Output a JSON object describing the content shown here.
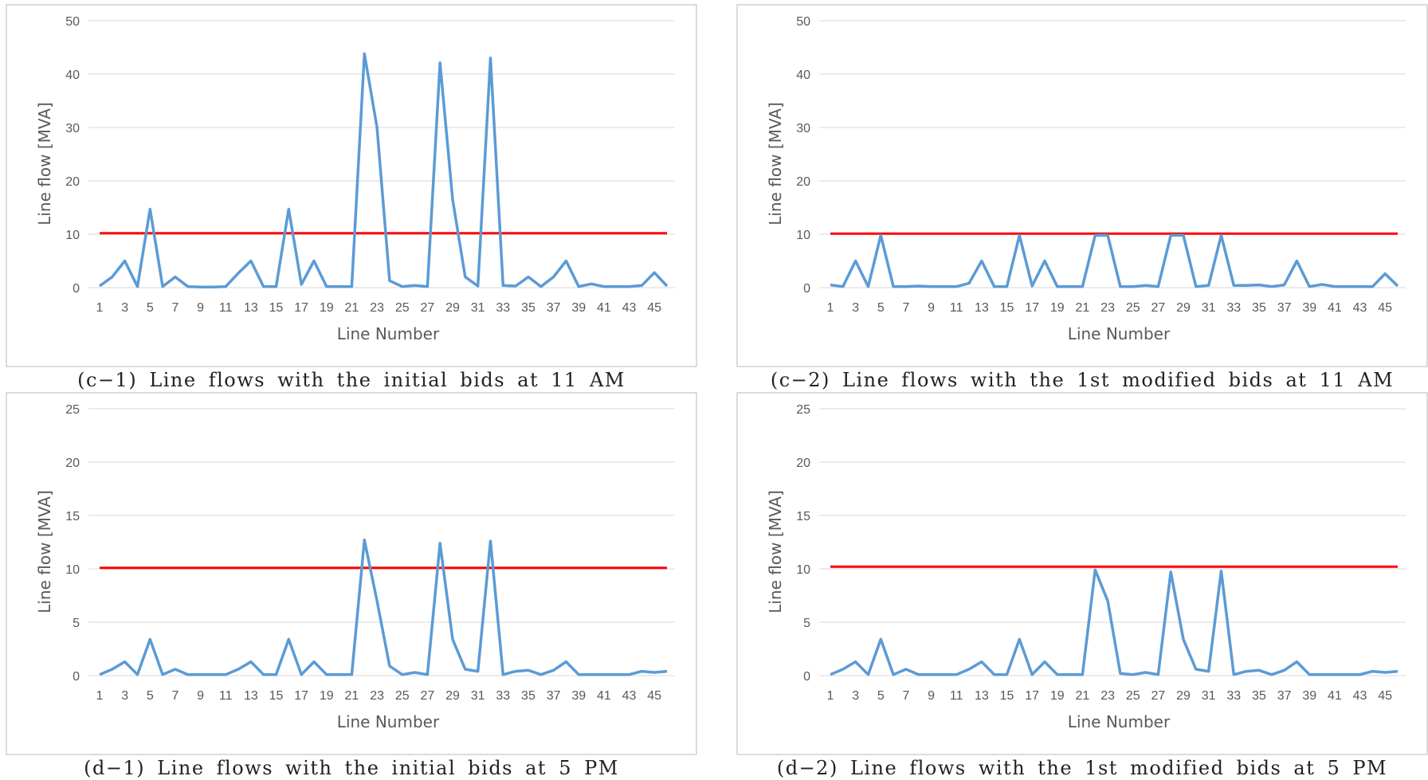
{
  "chart_data": [
    {
      "type": "line",
      "caption": "(c−1) Line flows with the initial bids at 11 AM",
      "xlabel": "Line Number",
      "ylabel": "Line flow [MVA]",
      "ylim": [
        0,
        50
      ],
      "yticks": [
        "0",
        "10",
        "20",
        "30",
        "40",
        "50"
      ],
      "xticks": [
        "1",
        "3",
        "5",
        "7",
        "9",
        "11",
        "13",
        "15",
        "17",
        "19",
        "21",
        "23",
        "25",
        "27",
        "29",
        "31",
        "33",
        "35",
        "37",
        "39",
        "41",
        "43",
        "45"
      ],
      "grid": true,
      "x": [
        1,
        2,
        3,
        4,
        5,
        6,
        7,
        8,
        9,
        10,
        11,
        12,
        13,
        14,
        15,
        16,
        17,
        18,
        19,
        20,
        21,
        22,
        23,
        24,
        25,
        26,
        27,
        28,
        29,
        30,
        31,
        32,
        33,
        34,
        35,
        36,
        37,
        38,
        39,
        40,
        41,
        42,
        43,
        44,
        45,
        46
      ],
      "series": [
        {
          "values": [
            0.3,
            2,
            5,
            0.2,
            14.7,
            0.2,
            2,
            0.2,
            0.1,
            0.1,
            0.2,
            2.7,
            5,
            0.2,
            0.2,
            14.7,
            0.6,
            5,
            0.2,
            0.2,
            0.2,
            43.8,
            30,
            1.3,
            0.2,
            0.4,
            0.2,
            42.1,
            16.5,
            2,
            0.3,
            43,
            0.4,
            0.3,
            2,
            0.2,
            2,
            5,
            0.2,
            0.7,
            0.2,
            0.2,
            0.2,
            0.4,
            2.8,
            0.3
          ]
        },
        {
          "values": [
            10.2,
            10.2,
            10.2,
            10.2,
            10.2,
            10.2,
            10.2,
            10.2,
            10.2,
            10.2,
            10.2,
            10.2,
            10.2,
            10.2,
            10.2,
            10.2,
            10.2,
            10.2,
            10.2,
            10.2,
            10.2,
            10.2,
            10.2,
            10.2,
            10.2,
            10.2,
            10.2,
            10.2,
            10.2,
            10.2,
            10.2,
            10.2,
            10.2,
            10.2,
            10.2,
            10.2,
            10.2,
            10.2,
            10.2,
            10.2,
            10.2,
            10.2,
            10.2,
            10.2,
            10.2,
            10.2
          ]
        }
      ]
    },
    {
      "type": "line",
      "caption": "(c−2) Line flows with the 1st modified bids at 11 AM",
      "xlabel": "Line Number",
      "ylabel": "Line flow [MVA]",
      "ylim": [
        0,
        50
      ],
      "yticks": [
        "0",
        "10",
        "20",
        "30",
        "40",
        "50"
      ],
      "xticks": [
        "1",
        "3",
        "5",
        "7",
        "9",
        "11",
        "13",
        "15",
        "17",
        "19",
        "21",
        "23",
        "25",
        "27",
        "29",
        "31",
        "33",
        "35",
        "37",
        "39",
        "41",
        "43",
        "45"
      ],
      "grid": true,
      "x": [
        1,
        2,
        3,
        4,
        5,
        6,
        7,
        8,
        9,
        10,
        11,
        12,
        13,
        14,
        15,
        16,
        17,
        18,
        19,
        20,
        21,
        22,
        23,
        24,
        25,
        26,
        27,
        28,
        29,
        30,
        31,
        32,
        33,
        34,
        35,
        36,
        37,
        38,
        39,
        40,
        41,
        42,
        43,
        44,
        45,
        46
      ],
      "series": [
        {
          "values": [
            0.5,
            0.2,
            5,
            0.2,
            9.8,
            0.2,
            0.2,
            0.3,
            0.2,
            0.2,
            0.2,
            0.8,
            5,
            0.2,
            0.2,
            9.8,
            0.3,
            5,
            0.2,
            0.2,
            0.2,
            9.8,
            9.8,
            0.2,
            0.2,
            0.4,
            0.2,
            9.8,
            9.8,
            0.2,
            0.4,
            9.8,
            0.4,
            0.4,
            0.5,
            0.2,
            0.5,
            5,
            0.2,
            0.6,
            0.2,
            0.2,
            0.2,
            0.2,
            2.6,
            0.3
          ]
        },
        {
          "values": [
            10.1,
            10.1,
            10.1,
            10.1,
            10.1,
            10.1,
            10.1,
            10.1,
            10.1,
            10.1,
            10.1,
            10.1,
            10.1,
            10.1,
            10.1,
            10.1,
            10.1,
            10.1,
            10.1,
            10.1,
            10.1,
            10.1,
            10.1,
            10.1,
            10.1,
            10.1,
            10.1,
            10.1,
            10.1,
            10.1,
            10.1,
            10.1,
            10.1,
            10.1,
            10.1,
            10.1,
            10.1,
            10.1,
            10.1,
            10.1,
            10.1,
            10.1,
            10.1,
            10.1,
            10.1,
            10.1
          ]
        }
      ]
    },
    {
      "type": "line",
      "caption": "(d−1) Line flows with the initial bids at 5 PM",
      "xlabel": "Line Number",
      "ylabel": "Line flow [MVA]",
      "ylim": [
        0,
        25
      ],
      "yticks": [
        "0",
        "5",
        "10",
        "15",
        "20",
        "25"
      ],
      "xticks": [
        "1",
        "3",
        "5",
        "7",
        "9",
        "11",
        "13",
        "15",
        "17",
        "19",
        "21",
        "23",
        "25",
        "27",
        "29",
        "31",
        "33",
        "35",
        "37",
        "39",
        "41",
        "43",
        "45"
      ],
      "grid": true,
      "x": [
        1,
        2,
        3,
        4,
        5,
        6,
        7,
        8,
        9,
        10,
        11,
        12,
        13,
        14,
        15,
        16,
        17,
        18,
        19,
        20,
        21,
        22,
        23,
        24,
        25,
        26,
        27,
        28,
        29,
        30,
        31,
        32,
        33,
        34,
        35,
        36,
        37,
        38,
        39,
        40,
        41,
        42,
        43,
        44,
        45,
        46
      ],
      "series": [
        {
          "values": [
            0.1,
            0.6,
            1.3,
            0.1,
            3.4,
            0.1,
            0.6,
            0.1,
            0.1,
            0.1,
            0.1,
            0.6,
            1.3,
            0.1,
            0.1,
            3.4,
            0.1,
            1.3,
            0.1,
            0.1,
            0.1,
            12.7,
            7,
            0.9,
            0.1,
            0.3,
            0.1,
            12.4,
            3.4,
            0.6,
            0.4,
            12.6,
            0.1,
            0.4,
            0.5,
            0.1,
            0.5,
            1.3,
            0.1,
            0.1,
            0.1,
            0.1,
            0.1,
            0.4,
            0.3,
            0.4
          ]
        },
        {
          "values": [
            10.1,
            10.1,
            10.1,
            10.1,
            10.1,
            10.1,
            10.1,
            10.1,
            10.1,
            10.1,
            10.1,
            10.1,
            10.1,
            10.1,
            10.1,
            10.1,
            10.1,
            10.1,
            10.1,
            10.1,
            10.1,
            10.1,
            10.1,
            10.1,
            10.1,
            10.1,
            10.1,
            10.1,
            10.1,
            10.1,
            10.1,
            10.1,
            10.1,
            10.1,
            10.1,
            10.1,
            10.1,
            10.1,
            10.1,
            10.1,
            10.1,
            10.1,
            10.1,
            10.1,
            10.1,
            10.1
          ]
        }
      ]
    },
    {
      "type": "line",
      "caption": "(d−2) Line flows with the 1st modified bids at 5 PM",
      "xlabel": "Line Number",
      "ylabel": "Line flow [MVA]",
      "ylim": [
        0,
        25
      ],
      "yticks": [
        "0",
        "5",
        "10",
        "15",
        "20",
        "25"
      ],
      "xticks": [
        "1",
        "3",
        "5",
        "7",
        "9",
        "11",
        "13",
        "15",
        "17",
        "19",
        "21",
        "23",
        "25",
        "27",
        "29",
        "31",
        "33",
        "35",
        "37",
        "39",
        "41",
        "43",
        "45"
      ],
      "grid": true,
      "x": [
        1,
        2,
        3,
        4,
        5,
        6,
        7,
        8,
        9,
        10,
        11,
        12,
        13,
        14,
        15,
        16,
        17,
        18,
        19,
        20,
        21,
        22,
        23,
        24,
        25,
        26,
        27,
        28,
        29,
        30,
        31,
        32,
        33,
        34,
        35,
        36,
        37,
        38,
        39,
        40,
        41,
        42,
        43,
        44,
        45,
        46
      ],
      "series": [
        {
          "values": [
            0.1,
            0.6,
            1.3,
            0.1,
            3.4,
            0.1,
            0.6,
            0.1,
            0.1,
            0.1,
            0.1,
            0.6,
            1.3,
            0.1,
            0.1,
            3.4,
            0.1,
            1.3,
            0.1,
            0.1,
            0.1,
            9.9,
            7,
            0.2,
            0.1,
            0.3,
            0.1,
            9.7,
            3.4,
            0.6,
            0.4,
            9.8,
            0.1,
            0.4,
            0.5,
            0.1,
            0.5,
            1.3,
            0.1,
            0.1,
            0.1,
            0.1,
            0.1,
            0.4,
            0.3,
            0.4
          ]
        },
        {
          "values": [
            10.2,
            10.2,
            10.2,
            10.2,
            10.2,
            10.2,
            10.2,
            10.2,
            10.2,
            10.2,
            10.2,
            10.2,
            10.2,
            10.2,
            10.2,
            10.2,
            10.2,
            10.2,
            10.2,
            10.2,
            10.2,
            10.2,
            10.2,
            10.2,
            10.2,
            10.2,
            10.2,
            10.2,
            10.2,
            10.2,
            10.2,
            10.2,
            10.2,
            10.2,
            10.2,
            10.2,
            10.2,
            10.2,
            10.2,
            10.2,
            10.2,
            10.2,
            10.2,
            10.2,
            10.2,
            10.2
          ]
        }
      ]
    }
  ],
  "colors": {
    "flow": "#5b9bd5",
    "limit": "#ff0000"
  }
}
